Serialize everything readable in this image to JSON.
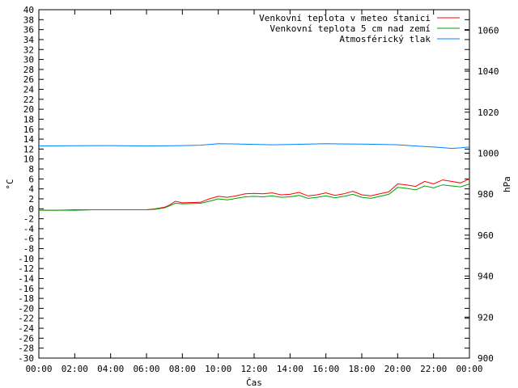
{
  "chart_data": {
    "type": "line",
    "xlabel": "Čas",
    "ylabel": "°C",
    "y2label": "hPa",
    "ylim": [
      -30,
      40
    ],
    "y2lim": [
      900,
      1070
    ],
    "xlim": [
      "00:00",
      "24:00"
    ],
    "grid": false,
    "legend_position": "top-right",
    "x_ticks": [
      "00:00",
      "02:00",
      "04:00",
      "06:00",
      "08:00",
      "10:00",
      "12:00",
      "14:00",
      "16:00",
      "18:00",
      "20:00",
      "22:00",
      "00:00"
    ],
    "y_ticks": [
      40,
      38,
      36,
      34,
      32,
      30,
      28,
      26,
      24,
      22,
      20,
      18,
      16,
      14,
      12,
      10,
      8,
      6,
      4,
      2,
      0,
      -2,
      -4,
      -6,
      -8,
      -10,
      -12,
      -14,
      -16,
      -18,
      -20,
      -22,
      -24,
      -26,
      -28,
      -30
    ],
    "y2_ticks": [
      1060,
      1040,
      1020,
      1000,
      980,
      960,
      940,
      920,
      900
    ],
    "series": [
      {
        "name": "Venkovní teplota v meteo stanici",
        "color": "#ff0000",
        "axis": "left",
        "x": [
          0,
          1,
          2,
          3,
          4,
          5,
          6,
          6.5,
          7,
          7.3,
          7.6,
          8,
          9,
          9.5,
          10,
          10.5,
          11,
          11.5,
          12,
          12.5,
          13,
          13.5,
          14,
          14.5,
          15,
          15.5,
          16,
          16.5,
          17,
          17.5,
          18,
          18.5,
          19,
          19.5,
          20,
          20.5,
          21,
          21.5,
          22,
          22.5,
          23,
          23.5,
          24
        ],
        "y": [
          -0.3,
          -0.3,
          -0.2,
          -0.2,
          -0.2,
          -0.2,
          -0.2,
          0,
          0.3,
          0.8,
          1.5,
          1.2,
          1.3,
          2.0,
          2.5,
          2.3,
          2.6,
          3.0,
          3.1,
          3.0,
          3.2,
          2.8,
          2.9,
          3.3,
          2.6,
          2.8,
          3.2,
          2.7,
          3.0,
          3.5,
          2.8,
          2.6,
          3.0,
          3.4,
          5.0,
          4.8,
          4.5,
          5.5,
          5.0,
          5.8,
          5.5,
          5.2,
          6.0
        ]
      },
      {
        "name": "Venkovní teplota 5 cm nad zemí",
        "color": "#00a000",
        "axis": "left",
        "x": [
          0,
          1,
          2,
          3,
          4,
          5,
          6,
          6.5,
          7,
          7.3,
          7.6,
          8,
          9,
          9.5,
          10,
          10.5,
          11,
          11.5,
          12,
          12.5,
          13,
          13.5,
          14,
          14.5,
          15,
          15.5,
          16,
          16.5,
          17,
          17.5,
          18,
          18.5,
          19,
          19.5,
          20,
          20.5,
          21,
          21.5,
          22,
          22.5,
          23,
          23.5,
          24
        ],
        "y": [
          -0.3,
          -0.3,
          -0.3,
          -0.2,
          -0.2,
          -0.2,
          -0.2,
          -0.1,
          0.2,
          0.6,
          1.1,
          1.0,
          1.1,
          1.5,
          2.0,
          1.8,
          2.1,
          2.4,
          2.5,
          2.4,
          2.6,
          2.3,
          2.4,
          2.7,
          2.1,
          2.3,
          2.6,
          2.2,
          2.5,
          2.9,
          2.3,
          2.1,
          2.5,
          2.9,
          4.3,
          4.1,
          3.8,
          4.6,
          4.2,
          4.8,
          4.6,
          4.4,
          5.0
        ]
      },
      {
        "name": "Atmosférický tlak",
        "color": "#0080ff",
        "axis": "right",
        "x": [
          0,
          2,
          4,
          6,
          8,
          9,
          10,
          11,
          12,
          13,
          14,
          15,
          16,
          17,
          18,
          19,
          20,
          21,
          22,
          22.5,
          23,
          23.5,
          24
        ],
        "y": [
          1003.5,
          1003.6,
          1003.7,
          1003.5,
          1003.7,
          1003.9,
          1004.6,
          1004.5,
          1004.3,
          1004.1,
          1004.2,
          1004.4,
          1004.6,
          1004.5,
          1004.4,
          1004.3,
          1004.1,
          1003.5,
          1003.0,
          1002.7,
          1002.3,
          1002.6,
          1003.0
        ]
      }
    ]
  }
}
